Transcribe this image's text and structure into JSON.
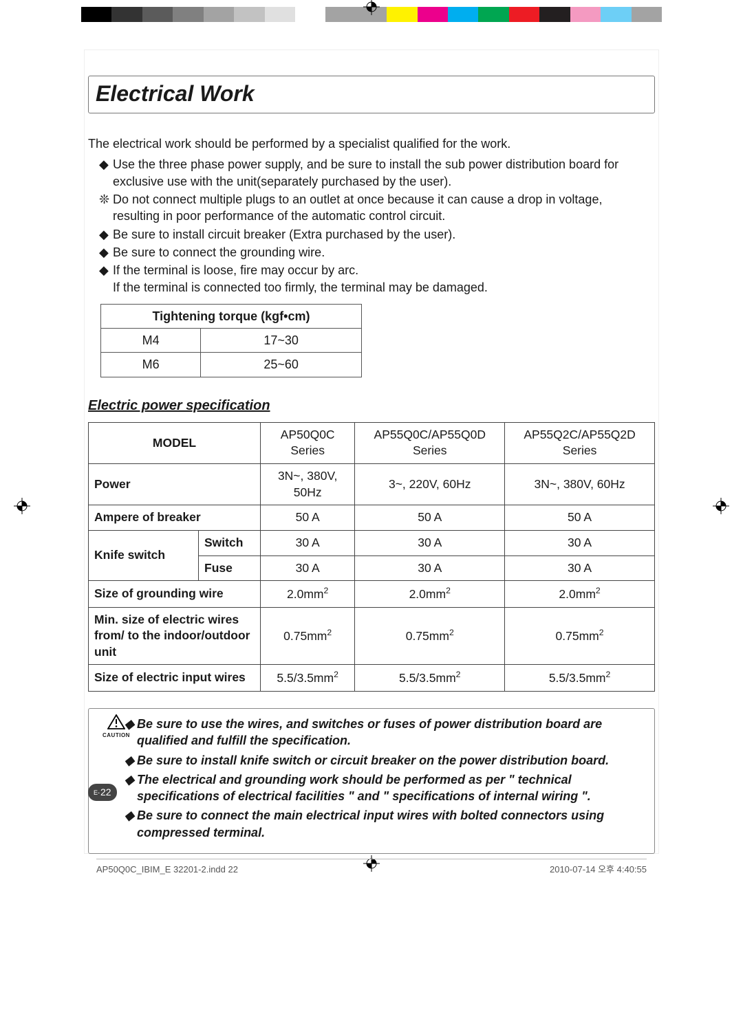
{
  "colorbar": [
    "#000000",
    "#333333",
    "#5b5b5b",
    "#808080",
    "#a3a3a3",
    "#c2c2c2",
    "#e0e0e0",
    "#ffffff",
    "#a3a3a3",
    "#a3a3a3",
    "#fff200",
    "#ec008c",
    "#00aeef",
    "#00a651",
    "#ed1c24",
    "#231f20",
    "#f49ac1",
    "#6dcff6",
    "#a3a3a3"
  ],
  "title": "Electrical Work",
  "intro": "The electrical work should be performed by a specialist qualified for the work.",
  "bullets": [
    {
      "mark": "◆",
      "text": "Use the three phase power supply, and be sure to install the sub power distribution board for exclusive use with the unit(separately purchased by the user)."
    },
    {
      "mark": "❊",
      "text": "Do not connect multiple plugs to an outlet at once because it can cause a drop in voltage,",
      "sub": "resulting in poor performance of the automatic control circuit."
    },
    {
      "mark": "◆",
      "text": "Be sure to install circuit breaker (Extra purchased by the user)."
    },
    {
      "mark": "◆",
      "text": "Be sure to connect the grounding wire."
    },
    {
      "mark": "◆",
      "text": "If the terminal is loose, fire may occur by arc.",
      "sub": "If the terminal is connected too firmly, the terminal may be damaged."
    }
  ],
  "torque": {
    "header": "Tightening torque (kgf•cm)",
    "rows": [
      {
        "size": "M4",
        "val": "17~30"
      },
      {
        "size": "M6",
        "val": "25~60"
      }
    ]
  },
  "subheading": "Electric power specification",
  "spec": {
    "model_header": "MODEL",
    "models": [
      "AP50Q0C Series",
      "AP55Q0C/AP55Q0D Series",
      "AP55Q2C/AP55Q2D Series"
    ],
    "power_label": "Power",
    "power": [
      "3N~, 380V, 50Hz",
      "3~, 220V, 60Hz",
      "3N~, 380V, 60Hz"
    ],
    "breaker_label": "Ampere of breaker",
    "breaker": [
      "50 A",
      "50 A",
      "50 A"
    ],
    "knife_label": "Knife switch",
    "switch_label": "Switch",
    "switch": [
      "30 A",
      "30 A",
      "30 A"
    ],
    "fuse_label": "Fuse",
    "fuse": [
      "30 A",
      "30 A",
      "30 A"
    ],
    "ground_label": "Size of grounding wire",
    "ground": [
      "2.0mm",
      "2.0mm",
      "2.0mm"
    ],
    "minwire_label": "Min. size of electric wires from/ to the indoor/outdoor unit",
    "minwire": [
      "0.75mm",
      "0.75mm",
      "0.75mm"
    ],
    "input_label": "Size of electric input wires",
    "input": [
      "5.5/3.5mm",
      "5.5/3.5mm",
      "5.5/3.5mm"
    ]
  },
  "caution_label": "CAUTION",
  "cautions": [
    "Be sure to use the wires, and switches or fuses of power distribution board are qualified and fulfill the specification.",
    "Be sure to install knife switch or circuit breaker on the power distribution board.",
    "The electrical and grounding work should be performed as per \" technical specifications of electrical facilities \" and \" specifications of internal wiring \".",
    "Be sure to connect the main electrical input wires with bolted connectors using compressed terminal."
  ],
  "pagenum_pre": "E-",
  "pagenum": "22",
  "footer_left": "AP50Q0C_IBIM_E 32201-2.indd   22",
  "footer_right": "2010-07-14   오후 4:40:55"
}
